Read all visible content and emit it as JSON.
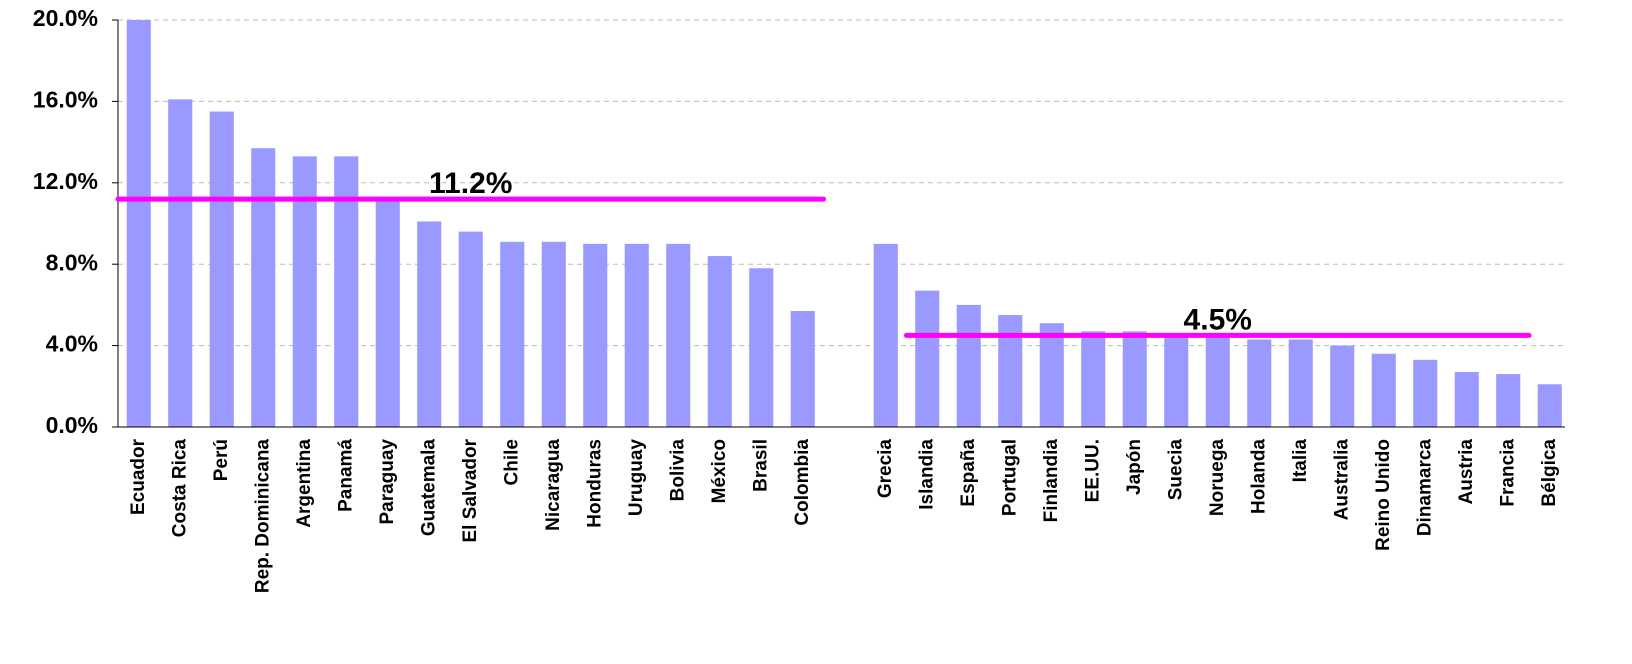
{
  "chart_data": {
    "type": "bar",
    "categories": [
      "Ecuador",
      "Costa Rica",
      "Perú",
      "Rep. Dominicana",
      "Argentina",
      "Panamá",
      "Paraguay",
      "Guatemala",
      "El Salvador",
      "Chile",
      "Nicaragua",
      "Honduras",
      "Uruguay",
      "Bolivia",
      "México",
      "Brasil",
      "Colombia",
      null,
      "Grecia",
      "Islandia",
      "España",
      "Portugal",
      "Finlandia",
      "EE.UU.",
      "Japón",
      "Suecia",
      "Noruega",
      "Holanda",
      "Italia",
      "Australia",
      "Reino Unido",
      "Dinamarca",
      "Austria",
      "Francia",
      "Bélgica"
    ],
    "values": [
      20.0,
      16.1,
      15.5,
      13.7,
      13.3,
      13.3,
      11.2,
      10.1,
      9.6,
      9.1,
      9.1,
      9.0,
      9.0,
      9.0,
      8.4,
      7.8,
      5.7,
      null,
      9.0,
      6.7,
      6.0,
      5.5,
      5.1,
      4.7,
      4.7,
      4.5,
      4.5,
      4.3,
      4.3,
      4.0,
      3.6,
      3.3,
      2.7,
      2.6,
      2.1
    ],
    "color": "#9999ff",
    "ylim": [
      0,
      20
    ],
    "yticks": [
      {
        "value": 0,
        "label": "0.0%"
      },
      {
        "value": 4,
        "label": "4.0%"
      },
      {
        "value": 8,
        "label": "8.0%"
      },
      {
        "value": 12,
        "label": "12.0%"
      },
      {
        "value": 16,
        "label": "16.0%"
      },
      {
        "value": 20,
        "label": "20.0%"
      }
    ],
    "grid": true,
    "averages": [
      {
        "label": "11.2%",
        "value": 11.2,
        "from": 0,
        "to": 17,
        "color": "#ff00ff"
      },
      {
        "label": "4.5%",
        "value": 4.5,
        "from": 19,
        "to": 34,
        "color": "#ff00ff"
      }
    ]
  }
}
